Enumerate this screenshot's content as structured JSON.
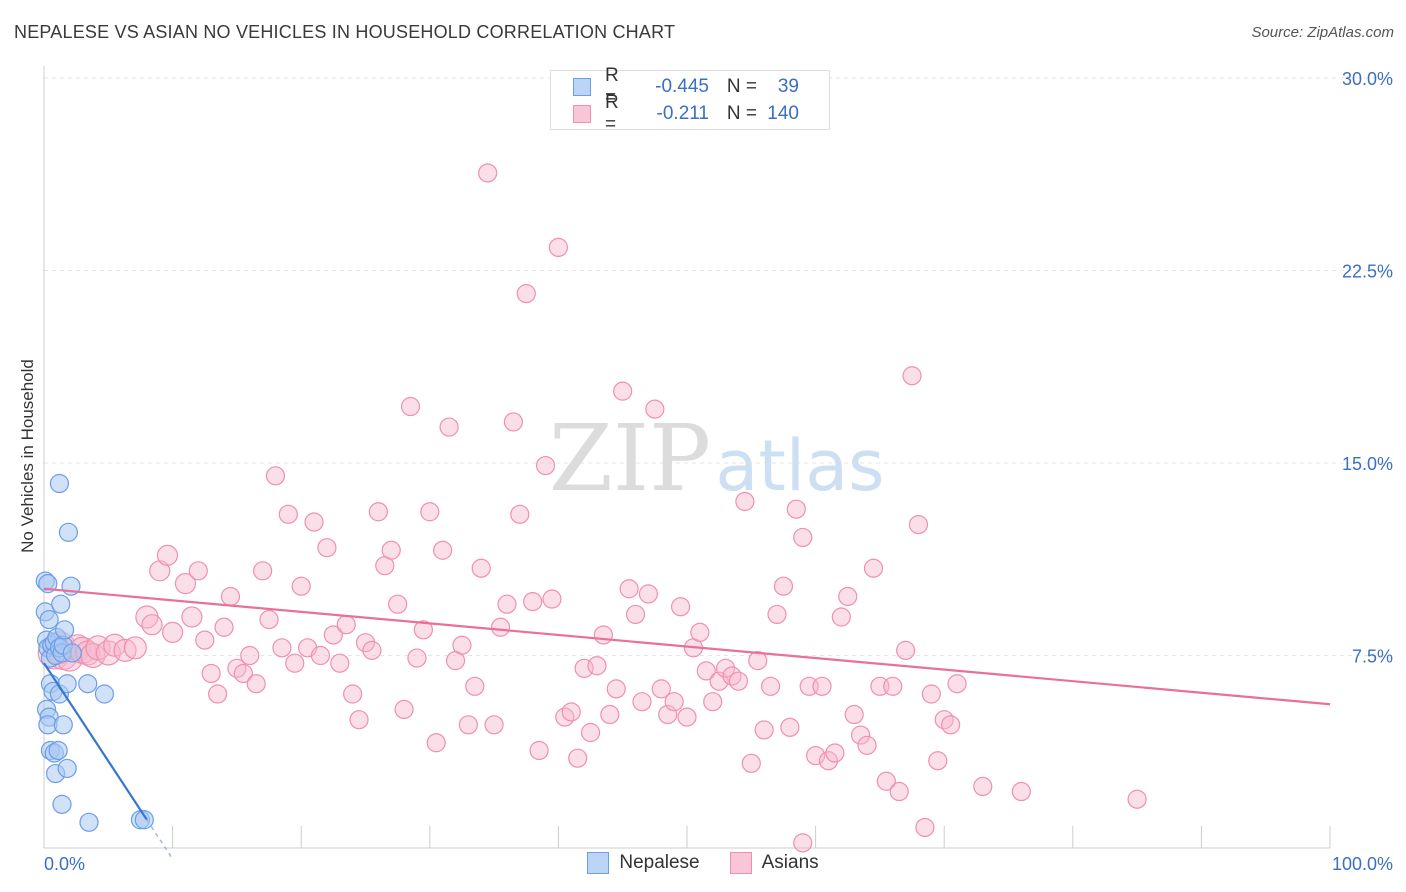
{
  "header": {
    "title": "NEPALESE VS ASIAN NO VEHICLES IN HOUSEHOLD CORRELATION CHART",
    "source": "Source: ZipAtlas.com"
  },
  "watermark": {
    "zip": "ZIP",
    "atlas": "atlas"
  },
  "legend": {
    "rows": [
      {
        "r_label": "R =",
        "r_value": "-0.445",
        "n_label": "N =",
        "n_value": "39"
      },
      {
        "r_label": "R =",
        "r_value": "-0.211",
        "n_label": "N =",
        "n_value": "140"
      }
    ]
  },
  "bottom_legend": {
    "nepalese": "Nepalese",
    "asians": "Asians"
  },
  "chart_data": {
    "type": "scatter",
    "title": "NEPALESE VS ASIAN NO VEHICLES IN HOUSEHOLD CORRELATION CHART",
    "xlabel": "",
    "ylabel": "No Vehicles in Household",
    "xlim": [
      0,
      100
    ],
    "ylim": [
      0,
      30.0
    ],
    "x_tick_labels": [
      "0.0%",
      "100.0%"
    ],
    "y_ticks": [
      7.5,
      15.0,
      22.5,
      30.0
    ],
    "y_tick_labels": [
      "7.5%",
      "15.0%",
      "22.5%",
      "30.0%"
    ],
    "grid": true,
    "colors": {
      "nepalese": "#6b9ee8",
      "asians": "#f08fb0",
      "nepalese_line": "#3776d0",
      "asians_line": "#e8709a",
      "tick": "#3a6fc4"
    },
    "series": [
      {
        "name": "Nepalese",
        "regression": {
          "x0": 0.0,
          "y0": 7.2,
          "x1": 8.0,
          "y1": 1.1,
          "dash_to_x": 10.0
        },
        "points": [
          [
            0.1,
            10.4
          ],
          [
            0.3,
            10.3
          ],
          [
            0.1,
            9.2
          ],
          [
            0.4,
            8.9
          ],
          [
            0.2,
            8.1
          ],
          [
            0.3,
            7.8
          ],
          [
            0.5,
            7.4
          ],
          [
            0.6,
            7.9
          ],
          [
            0.8,
            8.0
          ],
          [
            1.0,
            8.2
          ],
          [
            0.9,
            7.5
          ],
          [
            1.2,
            7.8
          ],
          [
            1.4,
            7.6
          ],
          [
            1.5,
            7.9
          ],
          [
            1.6,
            8.5
          ],
          [
            0.5,
            6.4
          ],
          [
            0.7,
            6.1
          ],
          [
            1.2,
            6.0
          ],
          [
            1.8,
            6.4
          ],
          [
            0.2,
            5.4
          ],
          [
            0.4,
            5.1
          ],
          [
            0.3,
            4.8
          ],
          [
            1.5,
            4.8
          ],
          [
            0.5,
            3.8
          ],
          [
            0.8,
            3.7
          ],
          [
            1.1,
            3.8
          ],
          [
            0.9,
            2.9
          ],
          [
            1.8,
            3.1
          ],
          [
            1.4,
            1.7
          ],
          [
            1.2,
            14.2
          ],
          [
            1.9,
            12.3
          ],
          [
            2.1,
            10.2
          ],
          [
            1.3,
            9.5
          ],
          [
            4.7,
            6.0
          ],
          [
            3.4,
            6.4
          ],
          [
            2.2,
            7.6
          ],
          [
            3.5,
            1.0
          ],
          [
            7.5,
            1.1
          ],
          [
            7.8,
            1.1
          ]
        ],
        "sizes": [
          9,
          9,
          9,
          9,
          9,
          9,
          9,
          9,
          9,
          9,
          9,
          9,
          9,
          9,
          9,
          9,
          9,
          9,
          9,
          9,
          9,
          9,
          9,
          9,
          9,
          9,
          9,
          9,
          9,
          9,
          9,
          9,
          9,
          9,
          9,
          9,
          9,
          9,
          9
        ]
      },
      {
        "name": "Asians",
        "regression": {
          "x0": 0.0,
          "y0": 10.1,
          "x1": 100.0,
          "y1": 5.6
        },
        "points": [
          [
            0.8,
            7.6
          ],
          [
            1.2,
            7.8
          ],
          [
            1.5,
            7.5
          ],
          [
            2.0,
            7.4
          ],
          [
            2.6,
            7.8
          ],
          [
            3.0,
            7.7
          ],
          [
            3.4,
            7.6
          ],
          [
            3.8,
            7.5
          ],
          [
            4.2,
            7.8
          ],
          [
            5.0,
            7.6
          ],
          [
            5.5,
            7.9
          ],
          [
            6.3,
            7.7
          ],
          [
            7.1,
            7.8
          ],
          [
            8.0,
            9.0
          ],
          [
            8.4,
            8.7
          ],
          [
            9.0,
            10.8
          ],
          [
            9.6,
            11.4
          ],
          [
            10.0,
            8.4
          ],
          [
            11.0,
            10.3
          ],
          [
            11.5,
            9.0
          ],
          [
            12.0,
            10.8
          ],
          [
            12.5,
            8.1
          ],
          [
            13.0,
            6.8
          ],
          [
            13.5,
            6.0
          ],
          [
            14.0,
            8.6
          ],
          [
            14.5,
            9.8
          ],
          [
            15.0,
            7.0
          ],
          [
            15.5,
            6.8
          ],
          [
            16.0,
            7.5
          ],
          [
            16.5,
            6.4
          ],
          [
            17.0,
            10.8
          ],
          [
            17.5,
            8.9
          ],
          [
            18.0,
            14.5
          ],
          [
            18.5,
            7.8
          ],
          [
            19.0,
            13.0
          ],
          [
            19.5,
            7.2
          ],
          [
            20.0,
            10.2
          ],
          [
            20.5,
            7.8
          ],
          [
            21.0,
            12.7
          ],
          [
            21.5,
            7.5
          ],
          [
            22.0,
            11.7
          ],
          [
            22.5,
            8.3
          ],
          [
            23.0,
            7.2
          ],
          [
            23.5,
            8.7
          ],
          [
            24.0,
            6.0
          ],
          [
            24.5,
            5.0
          ],
          [
            25.0,
            8.0
          ],
          [
            25.5,
            7.7
          ],
          [
            26.0,
            13.1
          ],
          [
            26.5,
            11.0
          ],
          [
            27.0,
            11.6
          ],
          [
            27.5,
            9.5
          ],
          [
            28.0,
            5.4
          ],
          [
            28.5,
            17.2
          ],
          [
            29.0,
            7.4
          ],
          [
            29.5,
            8.5
          ],
          [
            30.0,
            13.1
          ],
          [
            30.5,
            4.1
          ],
          [
            31.0,
            11.6
          ],
          [
            31.5,
            16.4
          ],
          [
            32.0,
            7.3
          ],
          [
            32.5,
            7.9
          ],
          [
            33.0,
            4.8
          ],
          [
            33.5,
            6.3
          ],
          [
            34.0,
            10.9
          ],
          [
            34.5,
            26.3
          ],
          [
            35.0,
            4.8
          ],
          [
            35.5,
            8.6
          ],
          [
            36.0,
            9.5
          ],
          [
            36.5,
            16.6
          ],
          [
            37.0,
            13.0
          ],
          [
            37.5,
            21.6
          ],
          [
            38.0,
            9.6
          ],
          [
            38.5,
            3.8
          ],
          [
            39.0,
            14.9
          ],
          [
            39.5,
            9.7
          ],
          [
            40.0,
            23.4
          ],
          [
            40.5,
            5.1
          ],
          [
            41.0,
            5.3
          ],
          [
            41.5,
            3.5
          ],
          [
            42.0,
            7.0
          ],
          [
            42.5,
            4.5
          ],
          [
            43.0,
            7.1
          ],
          [
            43.5,
            8.3
          ],
          [
            44.0,
            5.2
          ],
          [
            44.5,
            6.2
          ],
          [
            45.0,
            17.8
          ],
          [
            45.5,
            10.1
          ],
          [
            46.0,
            9.1
          ],
          [
            46.5,
            5.7
          ],
          [
            47.0,
            9.9
          ],
          [
            47.5,
            17.1
          ],
          [
            48.0,
            6.2
          ],
          [
            48.5,
            5.2
          ],
          [
            49.0,
            5.7
          ],
          [
            49.5,
            9.4
          ],
          [
            50.0,
            5.1
          ],
          [
            50.5,
            7.8
          ],
          [
            51.0,
            8.4
          ],
          [
            51.5,
            6.9
          ],
          [
            52.0,
            5.7
          ],
          [
            52.5,
            6.5
          ],
          [
            53.0,
            7.0
          ],
          [
            53.5,
            6.7
          ],
          [
            54.0,
            6.5
          ],
          [
            54.5,
            13.5
          ],
          [
            55.0,
            3.3
          ],
          [
            55.5,
            7.3
          ],
          [
            56.0,
            4.6
          ],
          [
            56.5,
            6.3
          ],
          [
            57.0,
            9.1
          ],
          [
            57.5,
            10.2
          ],
          [
            58.0,
            4.7
          ],
          [
            58.5,
            13.2
          ],
          [
            59.0,
            12.1
          ],
          [
            59.5,
            6.3
          ],
          [
            60.0,
            3.6
          ],
          [
            60.5,
            6.3
          ],
          [
            61.0,
            3.4
          ],
          [
            61.5,
            3.7
          ],
          [
            62.0,
            9.0
          ],
          [
            62.5,
            9.8
          ],
          [
            63.0,
            5.2
          ],
          [
            63.5,
            4.4
          ],
          [
            64.0,
            4.0
          ],
          [
            64.5,
            10.9
          ],
          [
            65.0,
            6.3
          ],
          [
            65.5,
            2.6
          ],
          [
            66.0,
            6.3
          ],
          [
            66.5,
            2.2
          ],
          [
            67.0,
            7.7
          ],
          [
            67.5,
            18.4
          ],
          [
            68.0,
            12.6
          ],
          [
            68.5,
            0.8
          ],
          [
            69.0,
            6.0
          ],
          [
            69.5,
            3.4
          ],
          [
            70.0,
            5.0
          ],
          [
            70.5,
            4.8
          ],
          [
            71.0,
            6.4
          ],
          [
            73.0,
            2.4
          ],
          [
            76.0,
            2.2
          ],
          [
            85.0,
            1.9
          ],
          [
            59.0,
            0.2
          ]
        ],
        "sizes": [
          16,
          16,
          14,
          13,
          13,
          13,
          12,
          12,
          12,
          12,
          11,
          11,
          11,
          11,
          10,
          10,
          10,
          10,
          10,
          10,
          9,
          9,
          9,
          9,
          9,
          9,
          9,
          9,
          9,
          9,
          9,
          9,
          9,
          9,
          9,
          9,
          9,
          9,
          9,
          9,
          9,
          9,
          9,
          9,
          9,
          9,
          9,
          9,
          9,
          9,
          9,
          9,
          9,
          9,
          9,
          9,
          9,
          9,
          9,
          9,
          9,
          9,
          9,
          9,
          9,
          9,
          9,
          9,
          9,
          9,
          9,
          9,
          9,
          9,
          9,
          9,
          9,
          9,
          9,
          9,
          9,
          9,
          9,
          9,
          9,
          9,
          9,
          9,
          9,
          9,
          9,
          9,
          9,
          9,
          9,
          9,
          9,
          9,
          9,
          9,
          9,
          9,
          9,
          9,
          9,
          9,
          9,
          9,
          9,
          9,
          9,
          9,
          9,
          9,
          9,
          9,
          9,
          9,
          9,
          9,
          9,
          9,
          9,
          9,
          9,
          9,
          9,
          9,
          9,
          9,
          9,
          9,
          9,
          9,
          9,
          9,
          9,
          9,
          9,
          9
        ]
      }
    ]
  }
}
